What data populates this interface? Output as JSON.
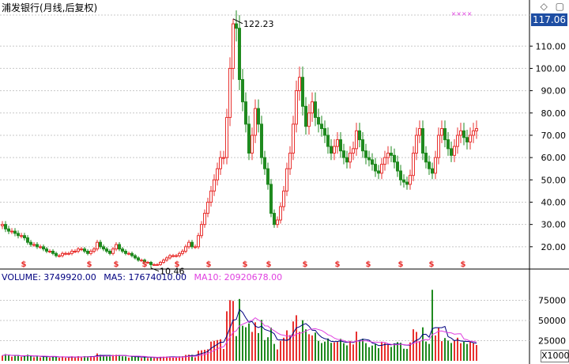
{
  "window": {
    "title": "浦发银行(月线,后复权)",
    "current_price": "117.06",
    "icons": [
      "diamond-icon",
      "window-icon"
    ],
    "legend_marker": "××××"
  },
  "volume_header": {
    "volume": "VOLUME: 3749920.00",
    "ma5": "MA5: 17674010.00",
    "ma10": "MA10: 20920678.00"
  },
  "volume_unit": "X1000",
  "colors": {
    "up": "#e8312f",
    "down": "#1f8a1f",
    "ma5": "#000080",
    "ma10": "#e040e0",
    "grid": "#c8c8c8"
  },
  "chart_data": [
    {
      "type": "candlestick",
      "title": "浦发银行(月线,后复权)",
      "y_ticks": [
        "20.00",
        "30.00",
        "40.00",
        "50.00",
        "60.00",
        "70.00",
        "80.00",
        "90.00",
        "100.00",
        "110.00"
      ],
      "ylim": [
        10,
        125
      ],
      "annotations": [
        {
          "label": "122.23",
          "value": 122.23
        },
        {
          "label": "10.46",
          "value": 10.46
        }
      ],
      "dividend_marker": "$",
      "closes": [
        30,
        28,
        27,
        27,
        26,
        25,
        25,
        24,
        22,
        21,
        21,
        20,
        20,
        19,
        18,
        18,
        17,
        16,
        16,
        17,
        17,
        17,
        18,
        18,
        19,
        19,
        18,
        17,
        18,
        19,
        22,
        20,
        19,
        18,
        17,
        19,
        21,
        19,
        18,
        17,
        17,
        16,
        15,
        14,
        14,
        13,
        13,
        12,
        12,
        12,
        13,
        14,
        15,
        16,
        16,
        16,
        17,
        18,
        20,
        22,
        20,
        20,
        25,
        30,
        35,
        40,
        45,
        50,
        55,
        60,
        60,
        78,
        100,
        120,
        118,
        95,
        85,
        75,
        62,
        70,
        82,
        75,
        60,
        55,
        48,
        35,
        30,
        32,
        38,
        45,
        55,
        62,
        75,
        90,
        96,
        83,
        74,
        80,
        85,
        78,
        75,
        73,
        70,
        65,
        62,
        65,
        68,
        63,
        60,
        58,
        62,
        64,
        72,
        68,
        63,
        60,
        59,
        57,
        54,
        53,
        57,
        60,
        62,
        61,
        58,
        54,
        50,
        49,
        48,
        52,
        62,
        70,
        73,
        62,
        58,
        55,
        53,
        60,
        70,
        73,
        68,
        64,
        61,
        65,
        70,
        72,
        69,
        67,
        70,
        72,
        73
      ]
    },
    {
      "type": "bar",
      "title": "VOLUME",
      "y_ticks": [
        "25000",
        "50000",
        "75000"
      ],
      "ylim": [
        0,
        100000
      ],
      "y_unit": "X1000"
    }
  ]
}
